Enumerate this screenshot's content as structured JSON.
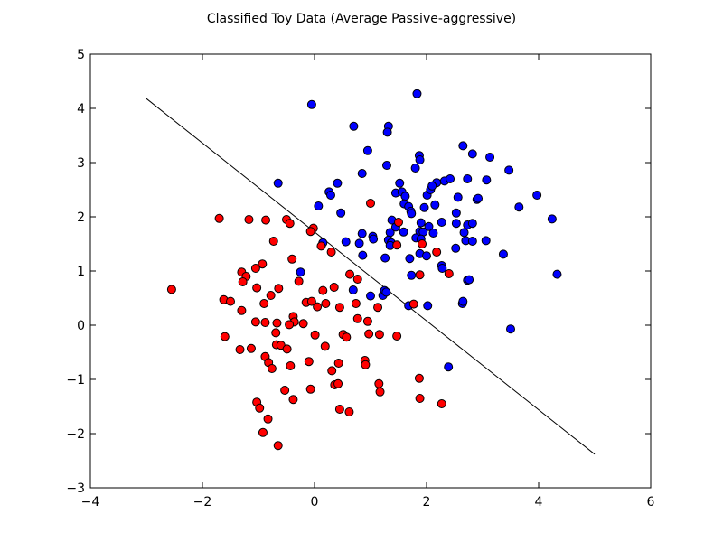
{
  "chart_data": {
    "type": "scatter",
    "title": "Classified Toy Data (Average Passive-aggressive)",
    "xlabel": "",
    "ylabel": "",
    "xlim": [
      -4,
      6
    ],
    "ylim": [
      -3,
      5
    ],
    "xticks": [
      -4,
      -2,
      0,
      2,
      4,
      6
    ],
    "yticks": [
      -3,
      -2,
      -1,
      0,
      1,
      2,
      3,
      4,
      5
    ],
    "xtick_labels": [
      "−4",
      "−2",
      "0",
      "2",
      "4",
      "6"
    ],
    "ytick_labels": [
      "−3",
      "−2",
      "−1",
      "0",
      "1",
      "2",
      "3",
      "4",
      "5"
    ],
    "grid": false,
    "legend": "none",
    "decision_boundary": {
      "x": [
        -3,
        5
      ],
      "y": [
        4.18,
        -2.38
      ],
      "color": "#000000"
    },
    "series": [
      {
        "color": "#0000ff",
        "points": [
          [
            -0.05,
            4.07
          ],
          [
            1.83,
            4.27
          ],
          [
            0.7,
            3.67
          ],
          [
            1.32,
            3.67
          ],
          [
            1.3,
            3.56
          ],
          [
            0.95,
            3.22
          ],
          [
            1.87,
            3.13
          ],
          [
            1.88,
            3.05
          ],
          [
            2.65,
            3.31
          ],
          [
            2.82,
            3.16
          ],
          [
            3.13,
            3.1
          ],
          [
            1.29,
            2.95
          ],
          [
            1.8,
            2.9
          ],
          [
            0.85,
            2.8
          ],
          [
            3.47,
            2.86
          ],
          [
            -0.65,
            2.62
          ],
          [
            0.41,
            2.62
          ],
          [
            1.52,
            2.62
          ],
          [
            2.18,
            2.63
          ],
          [
            2.32,
            2.66
          ],
          [
            2.42,
            2.7
          ],
          [
            2.73,
            2.7
          ],
          [
            3.07,
            2.68
          ],
          [
            0.26,
            2.46
          ],
          [
            0.29,
            2.4
          ],
          [
            1.45,
            2.44
          ],
          [
            1.56,
            2.46
          ],
          [
            1.62,
            2.38
          ],
          [
            2.01,
            2.4
          ],
          [
            2.07,
            2.5
          ],
          [
            2.1,
            2.57
          ],
          [
            2.56,
            2.36
          ],
          [
            2.9,
            2.32
          ],
          [
            2.92,
            2.34
          ],
          [
            3.97,
            2.4
          ],
          [
            0.07,
            2.2
          ],
          [
            1.6,
            2.24
          ],
          [
            1.68,
            2.19
          ],
          [
            1.72,
            2.1
          ],
          [
            1.96,
            2.17
          ],
          [
            2.15,
            2.22
          ],
          [
            3.65,
            2.18
          ],
          [
            0.47,
            2.07
          ],
          [
            1.73,
            2.06
          ],
          [
            2.53,
            2.07
          ],
          [
            1.38,
            1.94
          ],
          [
            1.9,
            1.89
          ],
          [
            2.27,
            1.9
          ],
          [
            2.53,
            1.88
          ],
          [
            2.73,
            1.85
          ],
          [
            2.82,
            1.88
          ],
          [
            4.24,
            1.96
          ],
          [
            0.85,
            1.69
          ],
          [
            1.04,
            1.64
          ],
          [
            1.35,
            1.71
          ],
          [
            1.45,
            1.81
          ],
          [
            1.59,
            1.72
          ],
          [
            1.88,
            1.73
          ],
          [
            1.94,
            1.72
          ],
          [
            2.04,
            1.82
          ],
          [
            2.67,
            1.71
          ],
          [
            0.15,
            1.52
          ],
          [
            0.56,
            1.54
          ],
          [
            0.8,
            1.51
          ],
          [
            1.05,
            1.59
          ],
          [
            1.32,
            1.57
          ],
          [
            1.37,
            1.52
          ],
          [
            1.81,
            1.61
          ],
          [
            1.9,
            1.59
          ],
          [
            2.12,
            1.7
          ],
          [
            2.7,
            1.56
          ],
          [
            2.82,
            1.55
          ],
          [
            3.06,
            1.56
          ],
          [
            1.35,
            1.47
          ],
          [
            1.88,
            1.32
          ],
          [
            2.0,
            1.28
          ],
          [
            2.52,
            1.42
          ],
          [
            1.26,
            1.24
          ],
          [
            1.7,
            1.23
          ],
          [
            3.37,
            1.31
          ],
          [
            0.86,
            1.29
          ],
          [
            2.27,
            1.1
          ],
          [
            2.28,
            1.05
          ],
          [
            -0.25,
            0.98
          ],
          [
            1.73,
            0.92
          ],
          [
            2.73,
            0.83
          ],
          [
            2.76,
            0.84
          ],
          [
            4.33,
            0.94
          ],
          [
            0.69,
            0.65
          ],
          [
            1.0,
            0.54
          ],
          [
            1.22,
            0.55
          ],
          [
            1.25,
            0.64
          ],
          [
            1.28,
            0.61
          ],
          [
            2.64,
            0.4
          ],
          [
            2.65,
            0.44
          ],
          [
            1.68,
            0.36
          ],
          [
            2.02,
            0.36
          ],
          [
            3.5,
            -0.07
          ],
          [
            2.39,
            -0.77
          ]
        ]
      },
      {
        "color": "#ff0000",
        "points": [
          [
            -1.7,
            1.97
          ],
          [
            -1.17,
            1.95
          ],
          [
            -0.87,
            1.94
          ],
          [
            -0.5,
            1.95
          ],
          [
            -0.44,
            1.88
          ],
          [
            1.0,
            2.25
          ],
          [
            1.5,
            1.9
          ],
          [
            1.92,
            1.5
          ],
          [
            -0.02,
            1.79
          ],
          [
            -0.07,
            1.73
          ],
          [
            0.12,
            1.46
          ],
          [
            -0.73,
            1.55
          ],
          [
            0.3,
            1.35
          ],
          [
            1.47,
            1.48
          ],
          [
            2.18,
            1.35
          ],
          [
            -0.4,
            1.22
          ],
          [
            -0.93,
            1.13
          ],
          [
            -1.05,
            1.05
          ],
          [
            -1.3,
            0.98
          ],
          [
            -1.22,
            0.9
          ],
          [
            -1.28,
            0.8
          ],
          [
            -0.28,
            0.81
          ],
          [
            0.63,
            0.94
          ],
          [
            0.77,
            0.85
          ],
          [
            1.88,
            0.93
          ],
          [
            2.4,
            0.95
          ],
          [
            -2.55,
            0.66
          ],
          [
            -1.03,
            0.69
          ],
          [
            -0.64,
            0.68
          ],
          [
            0.15,
            0.64
          ],
          [
            0.35,
            0.7
          ],
          [
            -1.62,
            0.47
          ],
          [
            -1.5,
            0.44
          ],
          [
            -0.78,
            0.55
          ],
          [
            -0.15,
            0.42
          ],
          [
            -0.05,
            0.44
          ],
          [
            0.05,
            0.34
          ],
          [
            0.2,
            0.4
          ],
          [
            0.74,
            0.4
          ],
          [
            1.13,
            0.33
          ],
          [
            1.77,
            0.39
          ],
          [
            -1.3,
            0.27
          ],
          [
            -0.9,
            0.4
          ],
          [
            -0.38,
            0.16
          ],
          [
            -0.36,
            0.06
          ],
          [
            0.45,
            0.33
          ],
          [
            0.77,
            0.12
          ],
          [
            0.95,
            0.07
          ],
          [
            -1.05,
            0.06
          ],
          [
            -0.88,
            0.05
          ],
          [
            -0.67,
            0.04
          ],
          [
            -0.45,
            0.01
          ],
          [
            -0.2,
            0.03
          ],
          [
            -1.6,
            -0.21
          ],
          [
            -0.69,
            -0.14
          ],
          [
            0.01,
            -0.18
          ],
          [
            0.51,
            -0.17
          ],
          [
            0.57,
            -0.22
          ],
          [
            0.97,
            -0.16
          ],
          [
            1.16,
            -0.17
          ],
          [
            1.47,
            -0.2
          ],
          [
            -1.33,
            -0.45
          ],
          [
            -1.13,
            -0.43
          ],
          [
            -0.68,
            -0.36
          ],
          [
            -0.6,
            -0.37
          ],
          [
            -0.49,
            -0.44
          ],
          [
            0.19,
            -0.39
          ],
          [
            -0.88,
            -0.58
          ],
          [
            -0.82,
            -0.69
          ],
          [
            -0.76,
            -0.8
          ],
          [
            -0.43,
            -0.75
          ],
          [
            -0.1,
            -0.67
          ],
          [
            0.31,
            -0.84
          ],
          [
            0.43,
            -0.7
          ],
          [
            0.9,
            -0.65
          ],
          [
            0.91,
            -0.73
          ],
          [
            1.87,
            -0.98
          ],
          [
            0.36,
            -1.1
          ],
          [
            0.42,
            -1.08
          ],
          [
            1.15,
            -1.08
          ],
          [
            1.17,
            -1.23
          ],
          [
            -0.07,
            -1.18
          ],
          [
            -0.53,
            -1.2
          ],
          [
            -0.38,
            -1.37
          ],
          [
            1.88,
            -1.35
          ],
          [
            2.27,
            -1.45
          ],
          [
            -1.03,
            -1.42
          ],
          [
            -0.98,
            -1.53
          ],
          [
            0.45,
            -1.55
          ],
          [
            0.62,
            -1.6
          ],
          [
            -0.83,
            -1.73
          ],
          [
            -0.92,
            -1.98
          ],
          [
            -0.65,
            -2.22
          ]
        ]
      }
    ]
  }
}
